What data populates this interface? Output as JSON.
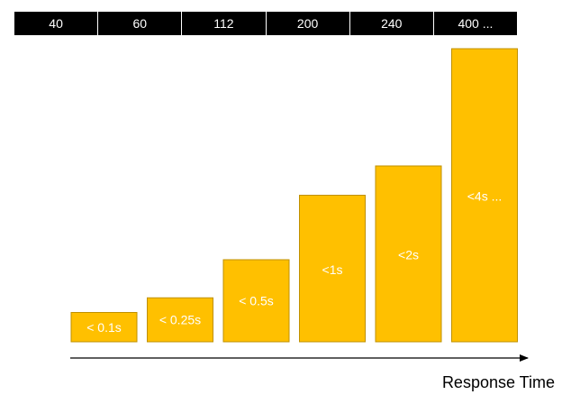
{
  "top_row": [
    "40",
    "60",
    "112",
    "200",
    "240",
    "400 ..."
  ],
  "axis_label": "Response Time",
  "chart_data": {
    "type": "bar",
    "categories": [
      "< 0.1s",
      "< 0.25s",
      "< 0.5s",
      "<1s",
      "<2s",
      "<4s ..."
    ],
    "values": [
      40,
      60,
      112,
      200,
      240,
      400
    ],
    "xlabel": "Response Time",
    "ylabel": "",
    "ylim": [
      0,
      400
    ],
    "bar_color": "#FFC000",
    "bar_border_color": "#BF9000",
    "label_color": "#FFFFFF",
    "grid": false,
    "legend": "none"
  }
}
